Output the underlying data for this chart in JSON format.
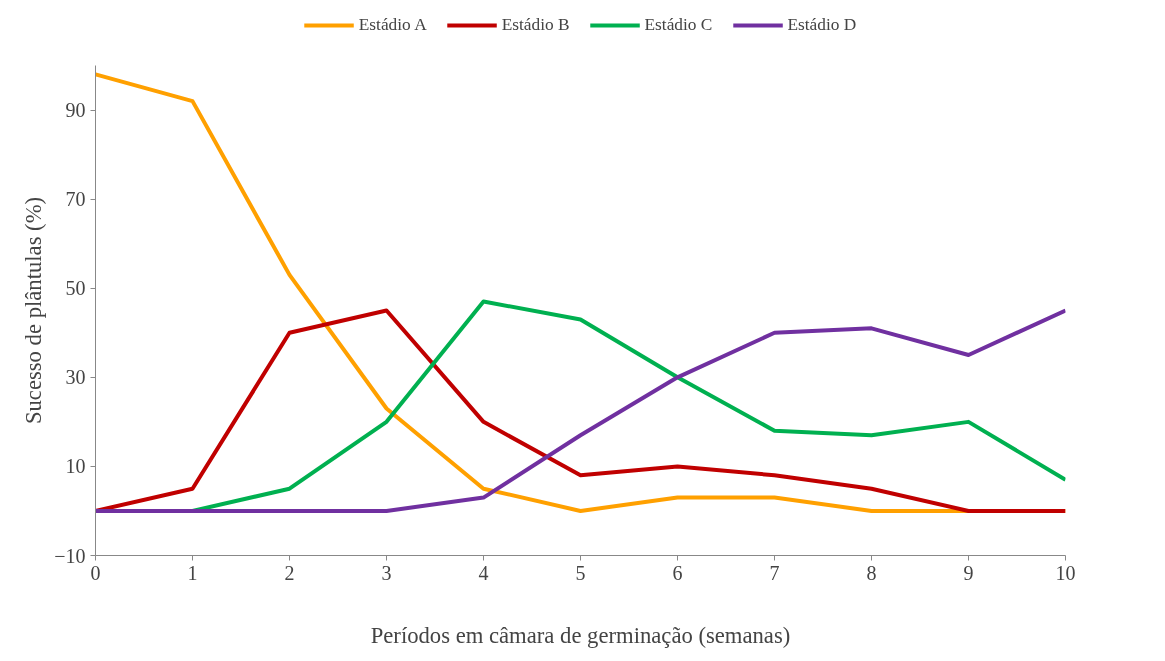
{
  "chart_data": {
    "type": "line",
    "xlabel": "Períodos em câmara de germinação (semanas)",
    "ylabel": "Sucesso de plântulas (%)",
    "x": [
      0,
      1,
      2,
      3,
      4,
      5,
      6,
      7,
      8,
      9,
      10
    ],
    "xlim": [
      0,
      10
    ],
    "xticks": [
      0,
      1,
      2,
      3,
      4,
      5,
      6,
      7,
      8,
      9,
      10
    ],
    "ylim": [
      -10,
      100
    ],
    "yticks": [
      -10,
      10,
      30,
      50,
      70,
      90
    ],
    "grid": false,
    "legend": "top",
    "marker": "none",
    "line_style": "solid",
    "series": [
      {
        "name": "Estádio A",
        "color": "#ffa000",
        "values": [
          98,
          92,
          53,
          23,
          5,
          0,
          3,
          3,
          0,
          0,
          0
        ]
      },
      {
        "name": "Estádio B",
        "color": "#c00000",
        "values": [
          0,
          5,
          40,
          45,
          20,
          8,
          10,
          8,
          5,
          0,
          0
        ]
      },
      {
        "name": "Estádio C",
        "color": "#00b050",
        "values": [
          0,
          0,
          5,
          20,
          47,
          43,
          30,
          18,
          17,
          20,
          7
        ]
      },
      {
        "name": "Estádio D",
        "color": "#7030a0",
        "values": [
          0,
          0,
          0,
          0,
          3,
          17,
          30,
          40,
          41,
          35,
          45
        ]
      }
    ]
  }
}
